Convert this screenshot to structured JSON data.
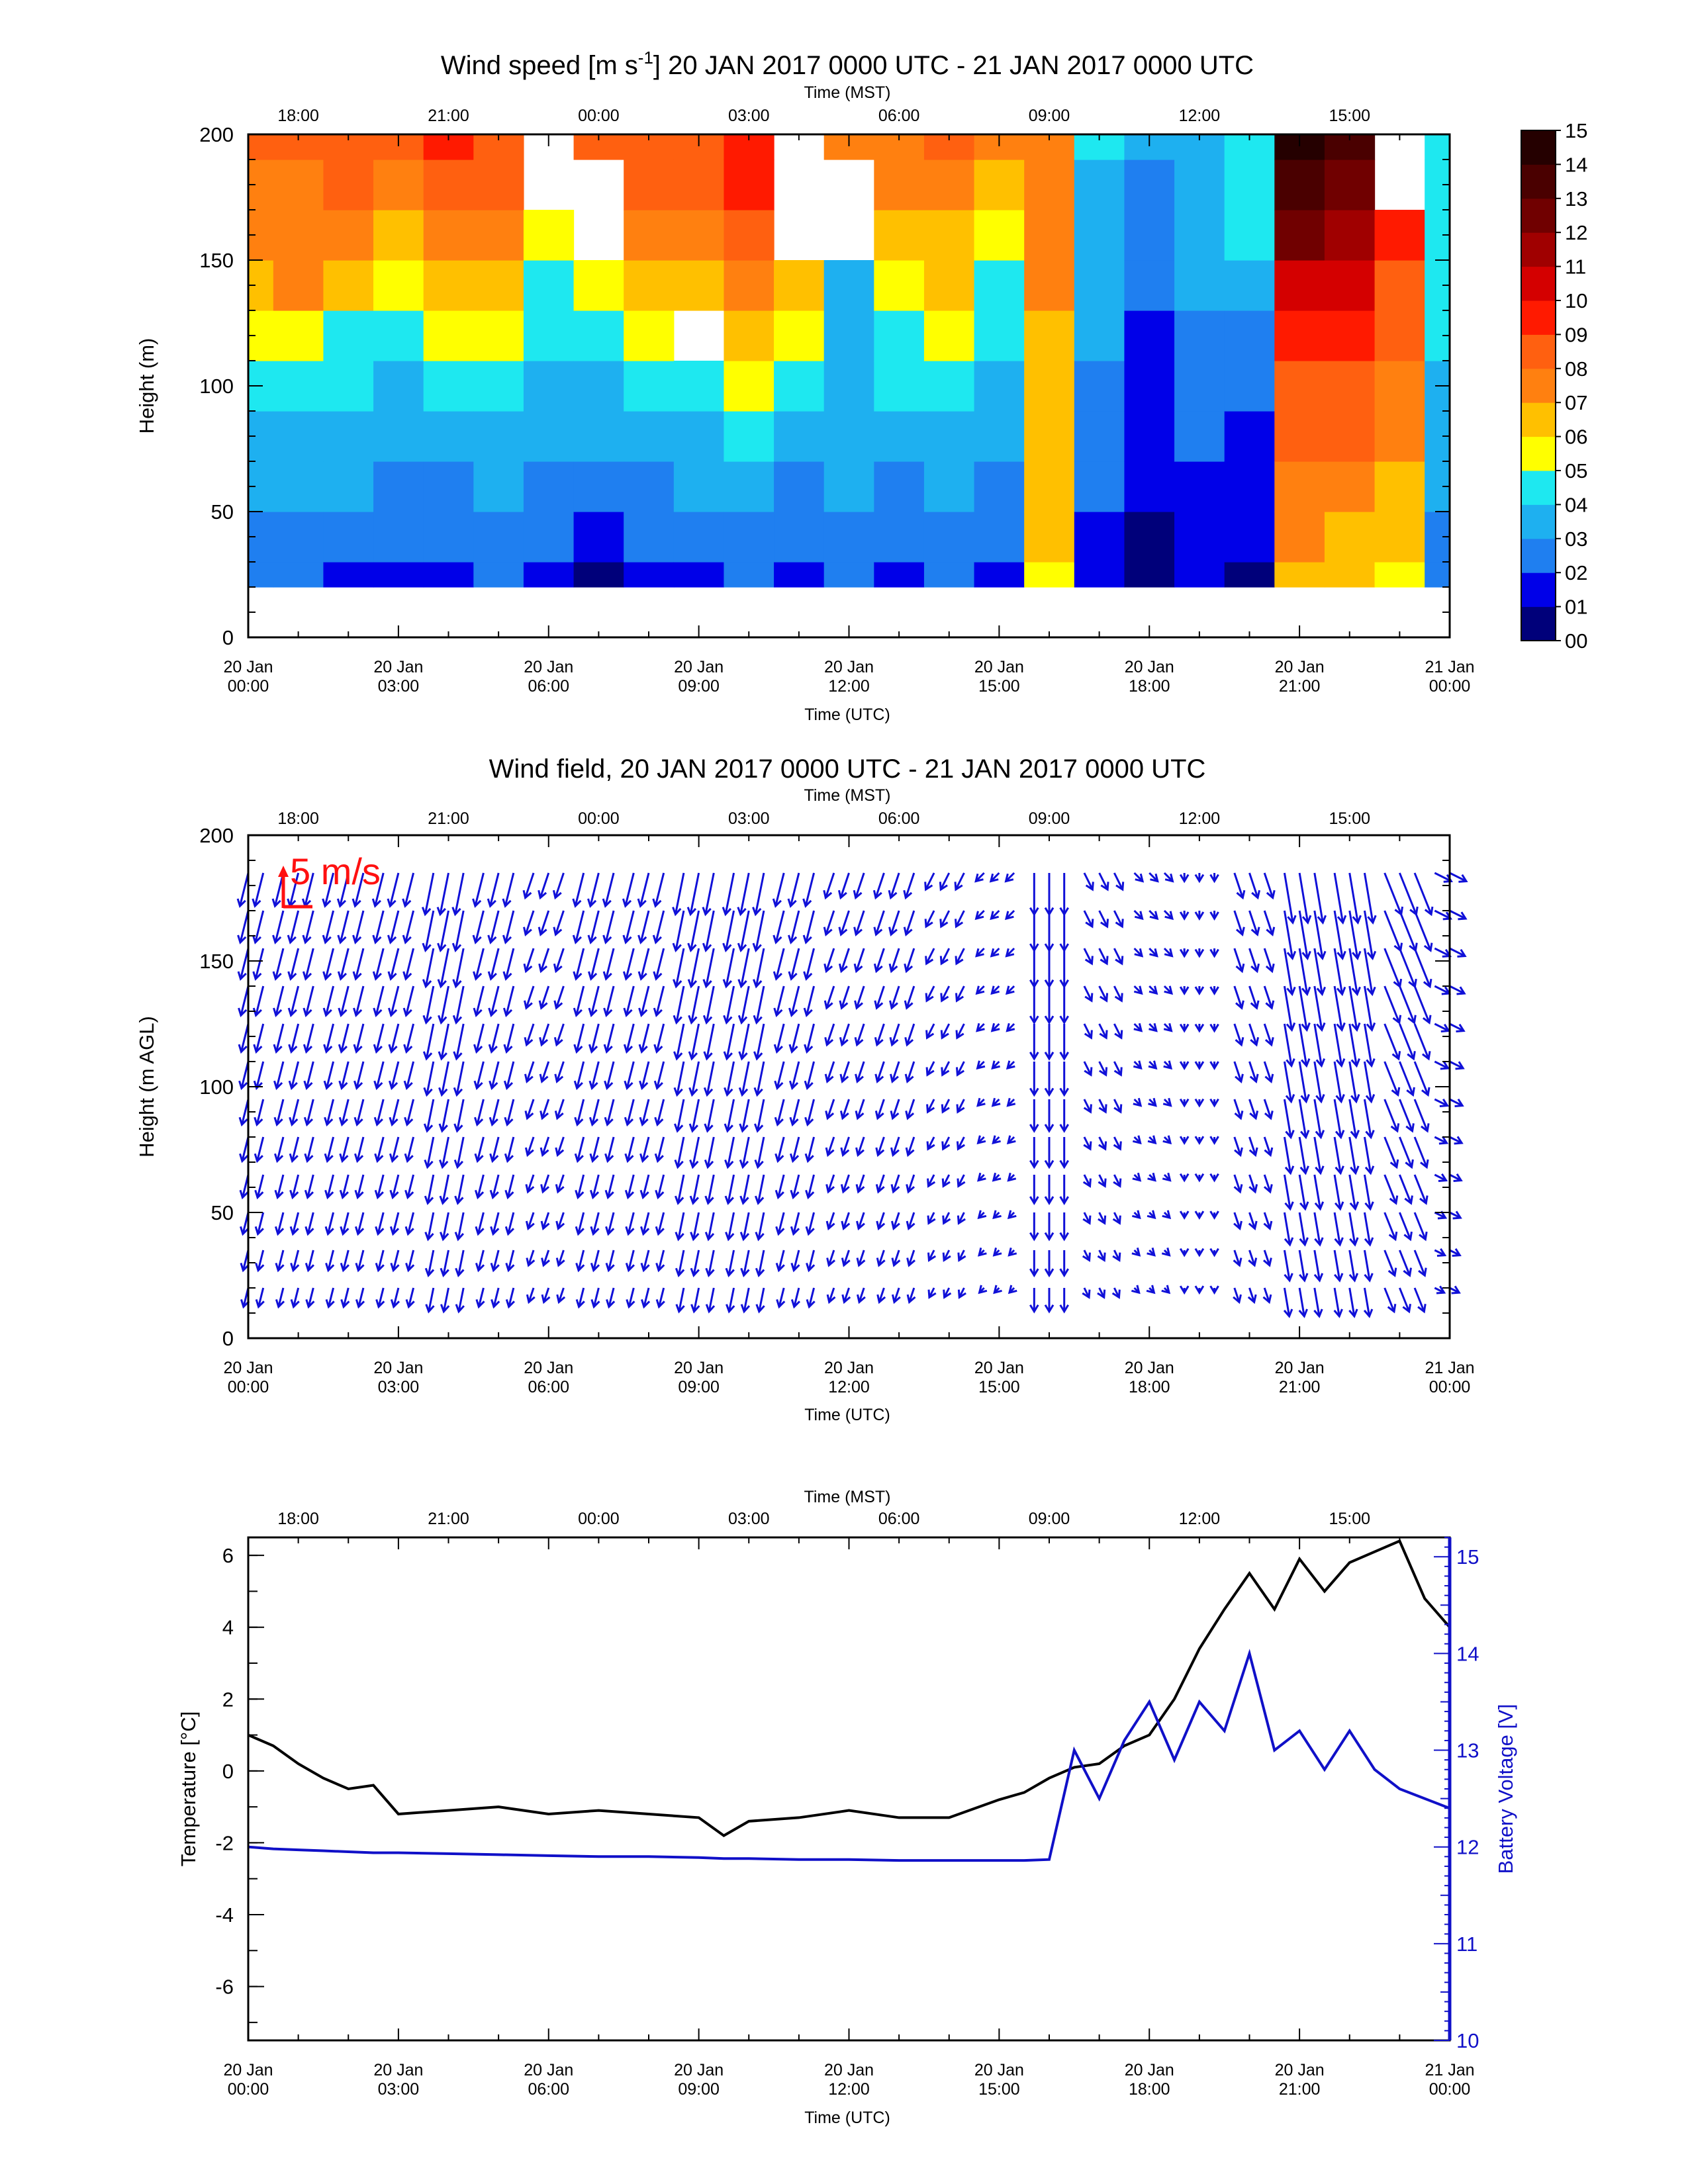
{
  "panel1": {
    "title": "Wind speed [m s-1] 20 JAN 2017 0000 UTC - 21 JAN 2017 0000 UTC",
    "title_prefix": "Wind speed [m s",
    "title_sup": "-1",
    "title_suffix": "] 20 JAN 2017 0000 UTC - 21 JAN 2017 0000 UTC",
    "ylabel": "Height (m)",
    "colorbar_labels": [
      "00",
      "01",
      "02",
      "03",
      "04",
      "05",
      "06",
      "07",
      "08",
      "09",
      "10",
      "11",
      "12",
      "13",
      "14",
      "15"
    ]
  },
  "panel2": {
    "title": "Wind field, 20 JAN 2017 0000 UTC - 21 JAN 2017 0000 UTC",
    "ylabel": "Height (m AGL)",
    "scale_label": "5 m/s"
  },
  "panel3": {
    "ylabel_left": "Temperature [°C]",
    "ylabel_right": "Battery Voltage [V]"
  },
  "axes": {
    "top_title": "Time (MST)",
    "bottom_title": "Time (UTC)",
    "mst_ticks": [
      "18:00",
      "21:00",
      "00:00",
      "03:00",
      "06:00",
      "09:00",
      "12:00",
      "15:00"
    ],
    "utc_day": [
      "20 Jan",
      "20 Jan",
      "20 Jan",
      "20 Jan",
      "20 Jan",
      "20 Jan",
      "20 Jan",
      "20 Jan",
      "21 Jan"
    ],
    "utc_time": [
      "00:00",
      "03:00",
      "06:00",
      "09:00",
      "12:00",
      "15:00",
      "18:00",
      "21:00",
      "00:00"
    ],
    "height_ticks": [
      "0",
      "50",
      "100",
      "150",
      "200"
    ],
    "temp_ticks": [
      "-6",
      "-4",
      "-2",
      "0",
      "2",
      "4",
      "6"
    ],
    "volt_ticks": [
      "10",
      "11",
      "12",
      "13",
      "14",
      "15"
    ]
  },
  "colors": {
    "temperature": "#000000",
    "battery": "#1010c8",
    "vectors": "#1010d8",
    "scale_arrow": "#ff1010",
    "colormap": [
      "#00007a",
      "#0000e8",
      "#1f7ff0",
      "#1eb0f0",
      "#1ee8f0",
      "#ffff00",
      "#ffc000",
      "#ff8010",
      "#ff6010",
      "#ff1a00",
      "#d40000",
      "#a00000",
      "#700000",
      "#4a0000",
      "#250000"
    ]
  },
  "chart_data": [
    {
      "type": "heatmap",
      "title": "Wind speed [m s-1] 20 JAN 2017 0000 UTC - 21 JAN 2017 0000 UTC",
      "xlabel": "Time (UTC)",
      "x2label": "Time (MST)",
      "ylabel": "Height (m)",
      "xlim_hours_utc": [
        0,
        24
      ],
      "ylim": [
        0,
        200
      ],
      "colorbar_range": [
        0,
        15
      ],
      "time_hours_utc": [
        0,
        1,
        2,
        3,
        4,
        5,
        6,
        7,
        8,
        9,
        10,
        11,
        12,
        13,
        14,
        15,
        16,
        17,
        18,
        19,
        20,
        21,
        22,
        23,
        24
      ],
      "profiles_speed_ms": [
        [
          2,
          2,
          3,
          3,
          4,
          5,
          6,
          7,
          7,
          8
        ],
        [
          2,
          2,
          3,
          3,
          4,
          5,
          7,
          7,
          7,
          8
        ],
        [
          1,
          2,
          3,
          3,
          4,
          4,
          6,
          7,
          8,
          8
        ],
        [
          1,
          2,
          2,
          3,
          3,
          4,
          5,
          6,
          7,
          8
        ],
        [
          1,
          2,
          2,
          3,
          4,
          5,
          6,
          7,
          8,
          9
        ],
        [
          2,
          2,
          3,
          3,
          4,
          5,
          6,
          7,
          8,
          8
        ],
        [
          1,
          2,
          2,
          3,
          3,
          4,
          4,
          5,
          null,
          null
        ],
        [
          0,
          1,
          2,
          3,
          3,
          4,
          5,
          null,
          null,
          8
        ],
        [
          1,
          2,
          2,
          3,
          4,
          5,
          6,
          7,
          8,
          8
        ],
        [
          1,
          2,
          3,
          3,
          4,
          null,
          6,
          7,
          8,
          8
        ],
        [
          2,
          2,
          3,
          4,
          5,
          6,
          7,
          8,
          9,
          9
        ],
        [
          1,
          2,
          2,
          3,
          4,
          5,
          6,
          null,
          null,
          null
        ],
        [
          2,
          2,
          3,
          3,
          3,
          3,
          3,
          null,
          null,
          7
        ],
        [
          1,
          2,
          2,
          3,
          4,
          4,
          5,
          6,
          7,
          7
        ],
        [
          2,
          2,
          3,
          3,
          4,
          5,
          6,
          6,
          7,
          8
        ],
        [
          1,
          2,
          2,
          3,
          3,
          4,
          4,
          5,
          6,
          7
        ],
        [
          5,
          6,
          6,
          6,
          6,
          6,
          7,
          7,
          7,
          7
        ],
        [
          1,
          1,
          2,
          2,
          2,
          3,
          3,
          3,
          3,
          4
        ],
        [
          0,
          0,
          1,
          1,
          1,
          1,
          2,
          2,
          2,
          3
        ],
        [
          1,
          1,
          1,
          2,
          2,
          2,
          3,
          3,
          3,
          3
        ],
        [
          0,
          1,
          1,
          1,
          2,
          2,
          3,
          4,
          4,
          4
        ],
        [
          6,
          7,
          7,
          8,
          8,
          9,
          10,
          12,
          13,
          14
        ],
        [
          6,
          6,
          7,
          8,
          8,
          9,
          10,
          11,
          12,
          13
        ],
        [
          5,
          6,
          6,
          7,
          7,
          8,
          8,
          9,
          null,
          null
        ],
        [
          2,
          2,
          3,
          3,
          3,
          4,
          4,
          4,
          4,
          4
        ]
      ],
      "heights_m": [
        20,
        40,
        60,
        80,
        100,
        120,
        140,
        160,
        180,
        200
      ]
    },
    {
      "type": "scatter",
      "title": "Wind field, 20 JAN 2017 0000 UTC - 21 JAN 2017 0000 UTC",
      "subtype": "vector field (wind barbs as arrows)",
      "xlabel": "Time (UTC)",
      "x2label": "Time (MST)",
      "ylabel": "Height (m AGL)",
      "xlim_hours_utc": [
        0,
        24
      ],
      "ylim": [
        0,
        200
      ],
      "scale_vector": "5 m/s",
      "time_hours_utc": [
        0,
        1,
        2,
        3,
        4,
        5,
        6,
        7,
        8,
        9,
        10,
        11,
        12,
        13,
        14,
        15,
        16,
        17,
        18,
        19,
        20,
        21,
        22,
        23,
        24
      ],
      "u_ms": [
        -1,
        -1,
        -1,
        -1,
        -1,
        -1,
        -1,
        -1,
        -1,
        -1,
        -1,
        -1,
        -1,
        -1,
        -1,
        -1,
        0,
        1,
        1,
        0,
        1,
        1,
        1,
        2,
        2
      ],
      "v_ms": [
        -4,
        -4,
        -4,
        -4,
        -5,
        -4,
        -3,
        -4,
        -4,
        -5,
        -5,
        -4,
        -3,
        -3,
        -2,
        -1,
        -5,
        -2,
        -1,
        -1,
        -3,
        -6,
        -6,
        -5,
        -1
      ]
    },
    {
      "type": "line",
      "xlabel": "Time (UTC)",
      "x2label": "Time (MST)",
      "ylabel": "Temperature [°C]",
      "y2label": "Battery Voltage [V]",
      "xlim_hours_utc": [
        0,
        24
      ],
      "ylim": [
        -7.5,
        6.5
      ],
      "y2lim": [
        10,
        15.2
      ],
      "x_hours_utc": [
        0,
        0.5,
        1,
        1.5,
        2,
        2.5,
        3,
        4,
        5,
        6,
        7,
        8,
        9,
        9.5,
        10,
        11,
        12,
        13,
        14,
        15,
        15.5,
        16,
        16.5,
        17,
        17.5,
        18,
        18.5,
        19,
        19.5,
        20,
        20.5,
        21,
        21.5,
        22,
        22.5,
        23,
        23.5,
        24
      ],
      "series": [
        {
          "name": "Temperature [°C]",
          "axis": "left",
          "values": [
            1.0,
            0.7,
            0.2,
            -0.2,
            -0.5,
            -0.4,
            -1.2,
            -1.1,
            -1.0,
            -1.2,
            -1.1,
            -1.2,
            -1.3,
            -1.8,
            -1.4,
            -1.3,
            -1.1,
            -1.3,
            -1.3,
            -0.8,
            -0.6,
            -0.2,
            0.1,
            0.2,
            0.7,
            1.0,
            2.0,
            3.4,
            4.5,
            5.5,
            4.5,
            5.9,
            5.0,
            5.8,
            6.1,
            6.4,
            4.8,
            4.0
          ]
        },
        {
          "name": "Battery Voltage [V]",
          "axis": "right",
          "values": [
            12.0,
            11.98,
            11.97,
            11.96,
            11.95,
            11.94,
            11.94,
            11.93,
            11.92,
            11.91,
            11.9,
            11.9,
            11.89,
            11.88,
            11.88,
            11.87,
            11.87,
            11.86,
            11.86,
            11.86,
            11.86,
            11.87,
            13.0,
            12.5,
            13.1,
            13.5,
            12.9,
            13.5,
            13.2,
            14.0,
            13.0,
            13.2,
            12.8,
            13.2,
            12.8,
            12.6,
            12.5,
            12.4
          ]
        }
      ]
    }
  ]
}
